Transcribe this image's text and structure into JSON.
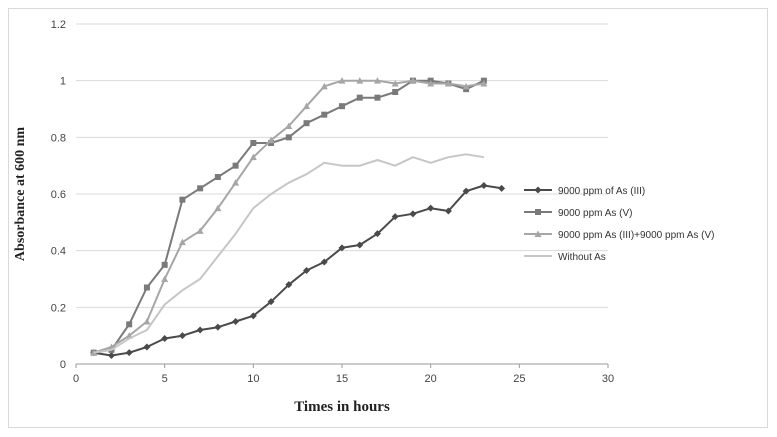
{
  "chart_data": {
    "type": "line",
    "title": "",
    "xlabel": "Times in hours",
    "ylabel": "Absorbance at 600 nm",
    "xlim": [
      0,
      30
    ],
    "ylim": [
      0,
      1.2
    ],
    "xticks": [
      0,
      5,
      10,
      15,
      20,
      25,
      30
    ],
    "yticks": [
      0,
      0.2,
      0.4,
      0.6,
      0.8,
      1,
      1.2
    ],
    "xtick_labels": [
      "0",
      "5",
      "10",
      "15",
      "20",
      "25",
      "30"
    ],
    "ytick_labels": [
      "0",
      "0.2",
      "0.4",
      "0.6",
      "0.8",
      "1",
      "1.2"
    ],
    "grid": "horizontal",
    "legend_position": "right",
    "series": [
      {
        "name": "9000 ppm of As (III)",
        "color": "#4a4a4a",
        "marker": "diamond",
        "x": [
          1,
          2,
          3,
          4,
          5,
          6,
          7,
          8,
          9,
          10,
          11,
          12,
          13,
          14,
          15,
          16,
          17,
          18,
          19,
          20,
          21,
          22,
          23,
          24
        ],
        "y": [
          0.04,
          0.03,
          0.04,
          0.06,
          0.09,
          0.1,
          0.12,
          0.13,
          0.15,
          0.17,
          0.22,
          0.28,
          0.33,
          0.36,
          0.41,
          0.42,
          0.46,
          0.52,
          0.53,
          0.55,
          0.54,
          0.61,
          0.63,
          0.62
        ]
      },
      {
        "name": "9000 ppm As (V)",
        "color": "#7a7a7a",
        "marker": "square",
        "x": [
          1,
          2,
          3,
          4,
          5,
          6,
          7,
          8,
          9,
          10,
          11,
          12,
          13,
          14,
          15,
          16,
          17,
          18,
          19,
          20,
          21,
          22,
          23
        ],
        "y": [
          0.04,
          0.05,
          0.14,
          0.27,
          0.35,
          0.58,
          0.62,
          0.66,
          0.7,
          0.78,
          0.78,
          0.8,
          0.85,
          0.88,
          0.91,
          0.94,
          0.94,
          0.96,
          1.0,
          1.0,
          0.99,
          0.97,
          1.0
        ]
      },
      {
        "name": "9000 ppm As (III)+9000 ppm As (V)",
        "color": "#a6a6a6",
        "marker": "triangle",
        "x": [
          1,
          2,
          3,
          4,
          5,
          6,
          7,
          8,
          9,
          10,
          11,
          12,
          13,
          14,
          15,
          16,
          17,
          18,
          19,
          20,
          21,
          22,
          23
        ],
        "y": [
          0.04,
          0.06,
          0.1,
          0.15,
          0.3,
          0.43,
          0.47,
          0.55,
          0.64,
          0.73,
          0.79,
          0.84,
          0.91,
          0.98,
          1.0,
          1.0,
          1.0,
          0.99,
          1.0,
          0.99,
          0.99,
          0.98,
          0.99
        ]
      },
      {
        "name": "Without As",
        "color": "#c6c6c6",
        "marker": "none",
        "x": [
          1,
          2,
          3,
          4,
          5,
          6,
          7,
          8,
          9,
          10,
          11,
          12,
          13,
          14,
          15,
          16,
          17,
          18,
          19,
          20,
          21,
          22,
          23
        ],
        "y": [
          0.04,
          0.05,
          0.09,
          0.12,
          0.21,
          0.26,
          0.3,
          0.38,
          0.46,
          0.55,
          0.6,
          0.64,
          0.67,
          0.71,
          0.7,
          0.7,
          0.72,
          0.7,
          0.73,
          0.71,
          0.73,
          0.74,
          0.73
        ]
      }
    ]
  }
}
